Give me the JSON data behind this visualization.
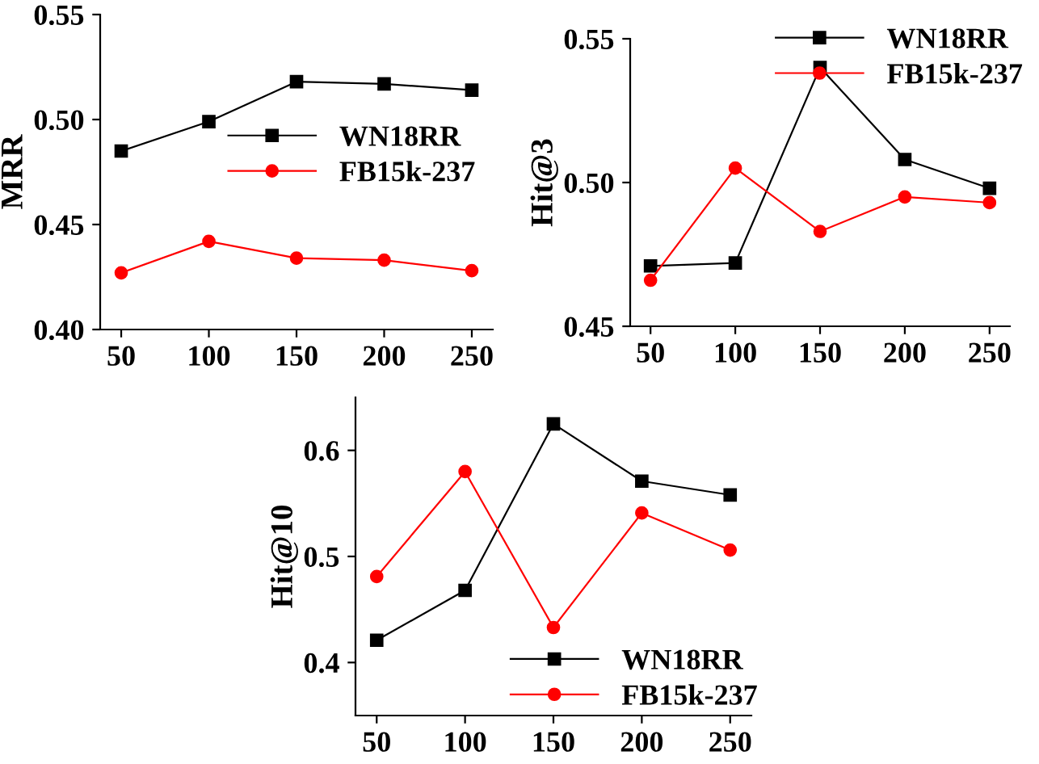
{
  "chart_data": [
    {
      "type": "line",
      "ylabel": "MRR",
      "x": [
        50,
        100,
        150,
        200,
        250
      ],
      "xlim": [
        38,
        262
      ],
      "xticks": [
        50,
        100,
        150,
        200,
        250
      ],
      "ylim": [
        0.4,
        0.55
      ],
      "yticks": [
        {
          "value": 0.4,
          "label": "0.40"
        },
        {
          "value": 0.45,
          "label": "0.45"
        },
        {
          "value": 0.5,
          "label": "0.50"
        },
        {
          "value": 0.55,
          "label": "0.55"
        }
      ],
      "legend": "right",
      "grid": false,
      "series": [
        {
          "name": "WN18RR",
          "color": "#000000",
          "marker": "square",
          "values": [
            0.485,
            0.499,
            0.518,
            0.517,
            0.514
          ]
        },
        {
          "name": "FB15k-237",
          "color": "#ff0000",
          "marker": "circle",
          "values": [
            0.427,
            0.442,
            0.434,
            0.433,
            0.428
          ]
        }
      ]
    },
    {
      "type": "line",
      "ylabel": "Hit@3",
      "x": [
        50,
        100,
        150,
        200,
        250
      ],
      "xlim": [
        38,
        262
      ],
      "xticks": [
        50,
        100,
        150,
        200,
        250
      ],
      "ylim": [
        0.45,
        0.55
      ],
      "yticks": [
        {
          "value": 0.45,
          "label": "0.45"
        },
        {
          "value": 0.5,
          "label": "0.50"
        },
        {
          "value": 0.55,
          "label": "0.55"
        }
      ],
      "legend": "top right",
      "grid": false,
      "series": [
        {
          "name": "WN18RR",
          "color": "#000000",
          "marker": "square",
          "values": [
            0.471,
            0.472,
            0.54,
            0.508,
            0.498
          ]
        },
        {
          "name": "FB15k-237",
          "color": "#ff0000",
          "marker": "circle",
          "values": [
            0.466,
            0.505,
            0.483,
            0.495,
            0.493
          ]
        }
      ]
    },
    {
      "type": "line",
      "ylabel": "Hit@10",
      "x": [
        50,
        100,
        150,
        200,
        250
      ],
      "xlim": [
        38,
        262
      ],
      "xticks": [
        50,
        100,
        150,
        200,
        250
      ],
      "ylim": [
        0.35,
        0.65
      ],
      "yticks": [
        0.4,
        0.5,
        0.6
      ],
      "legend": "bottom right",
      "grid": false,
      "series": [
        {
          "name": "WN18RR",
          "color": "#000000",
          "marker": "square",
          "values": [
            0.421,
            0.468,
            0.625,
            0.571,
            0.558
          ]
        },
        {
          "name": "FB15k-237",
          "color": "#ff0000",
          "marker": "circle",
          "values": [
            0.481,
            0.58,
            0.433,
            0.541,
            0.506
          ]
        }
      ]
    }
  ]
}
